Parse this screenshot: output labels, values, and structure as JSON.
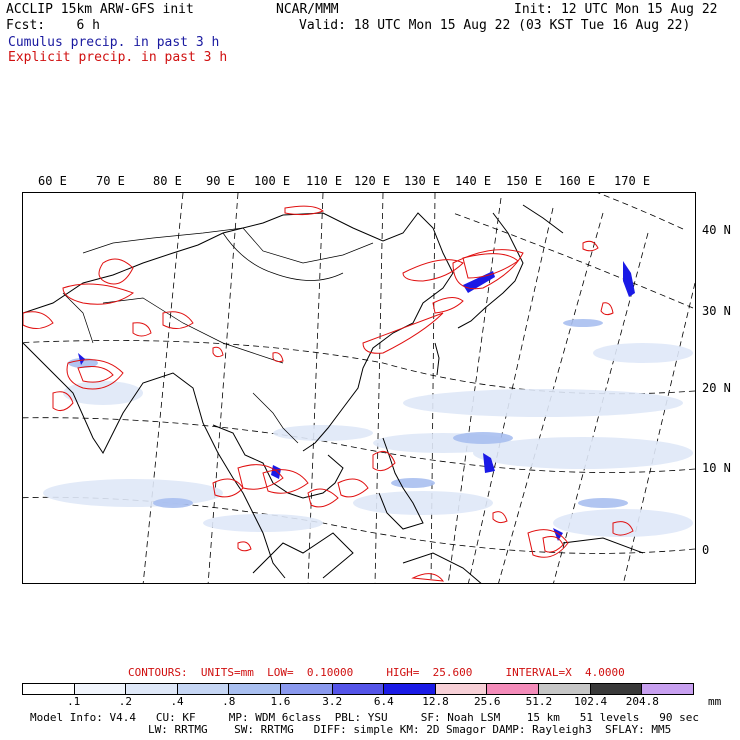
{
  "header": {
    "title_left": "ACCLIP 15km ARW-GFS init",
    "center": "NCAR/MMM",
    "init": "Init: 12 UTC Mon 15 Aug 22",
    "fcst": "Fcst:    6 h",
    "valid": "Valid: 18 UTC Mon 15 Aug 22 (03 KST Tue 16 Aug 22)",
    "cumulus": "Cumulus precip. in past 3 h",
    "explicit": "Explicit precip. in past 3 h"
  },
  "map": {
    "lon_labels": [
      "60 E",
      "70 E",
      "80 E",
      "90 E",
      "100 E",
      "110 E",
      "120 E",
      "130 E",
      "140 E",
      "150 E",
      "160 E",
      "170 E"
    ],
    "lat_labels": [
      "40 N",
      "30 N",
      "20 N",
      "10 N",
      "0"
    ]
  },
  "contours": {
    "prefix": "CONTOURS:",
    "units": "UNITS=mm",
    "low": "LOW=  0.10000",
    "high": "HIGH=  25.600",
    "interval": "INTERVAL=X  4.0000"
  },
  "colorbar": {
    "labels": [
      ".1",
      ".2",
      ".4",
      ".8",
      "1.6",
      "3.2",
      "6.4",
      "12.8",
      "25.6",
      "51.2",
      "102.4",
      "204.8"
    ],
    "unit": "mm",
    "colors": [
      "#ffffff",
      "#f1f5fc",
      "#dfe8f8",
      "#c6d6f4",
      "#a9bff0",
      "#8a99ee",
      "#5454e8",
      "#1a1ae6",
      "#f7d0d7",
      "#f48cba",
      "#c6c6c6",
      "#3a3a3a",
      "#c8a0f0"
    ]
  },
  "footer": {
    "line1": [
      "Model Info: V4.4",
      "CU: KF",
      "MP: WDM 6class",
      "PBL: YSU",
      "SF: Noah LSM",
      "15 km",
      "51 levels",
      "90 sec"
    ],
    "line2": [
      "LW: RRTMG",
      "SW: RRTMG",
      "DIFF: simple",
      "KM: 2D Smagor",
      "DAMP: Rayleigh3",
      "SFLAY: MM5"
    ]
  }
}
